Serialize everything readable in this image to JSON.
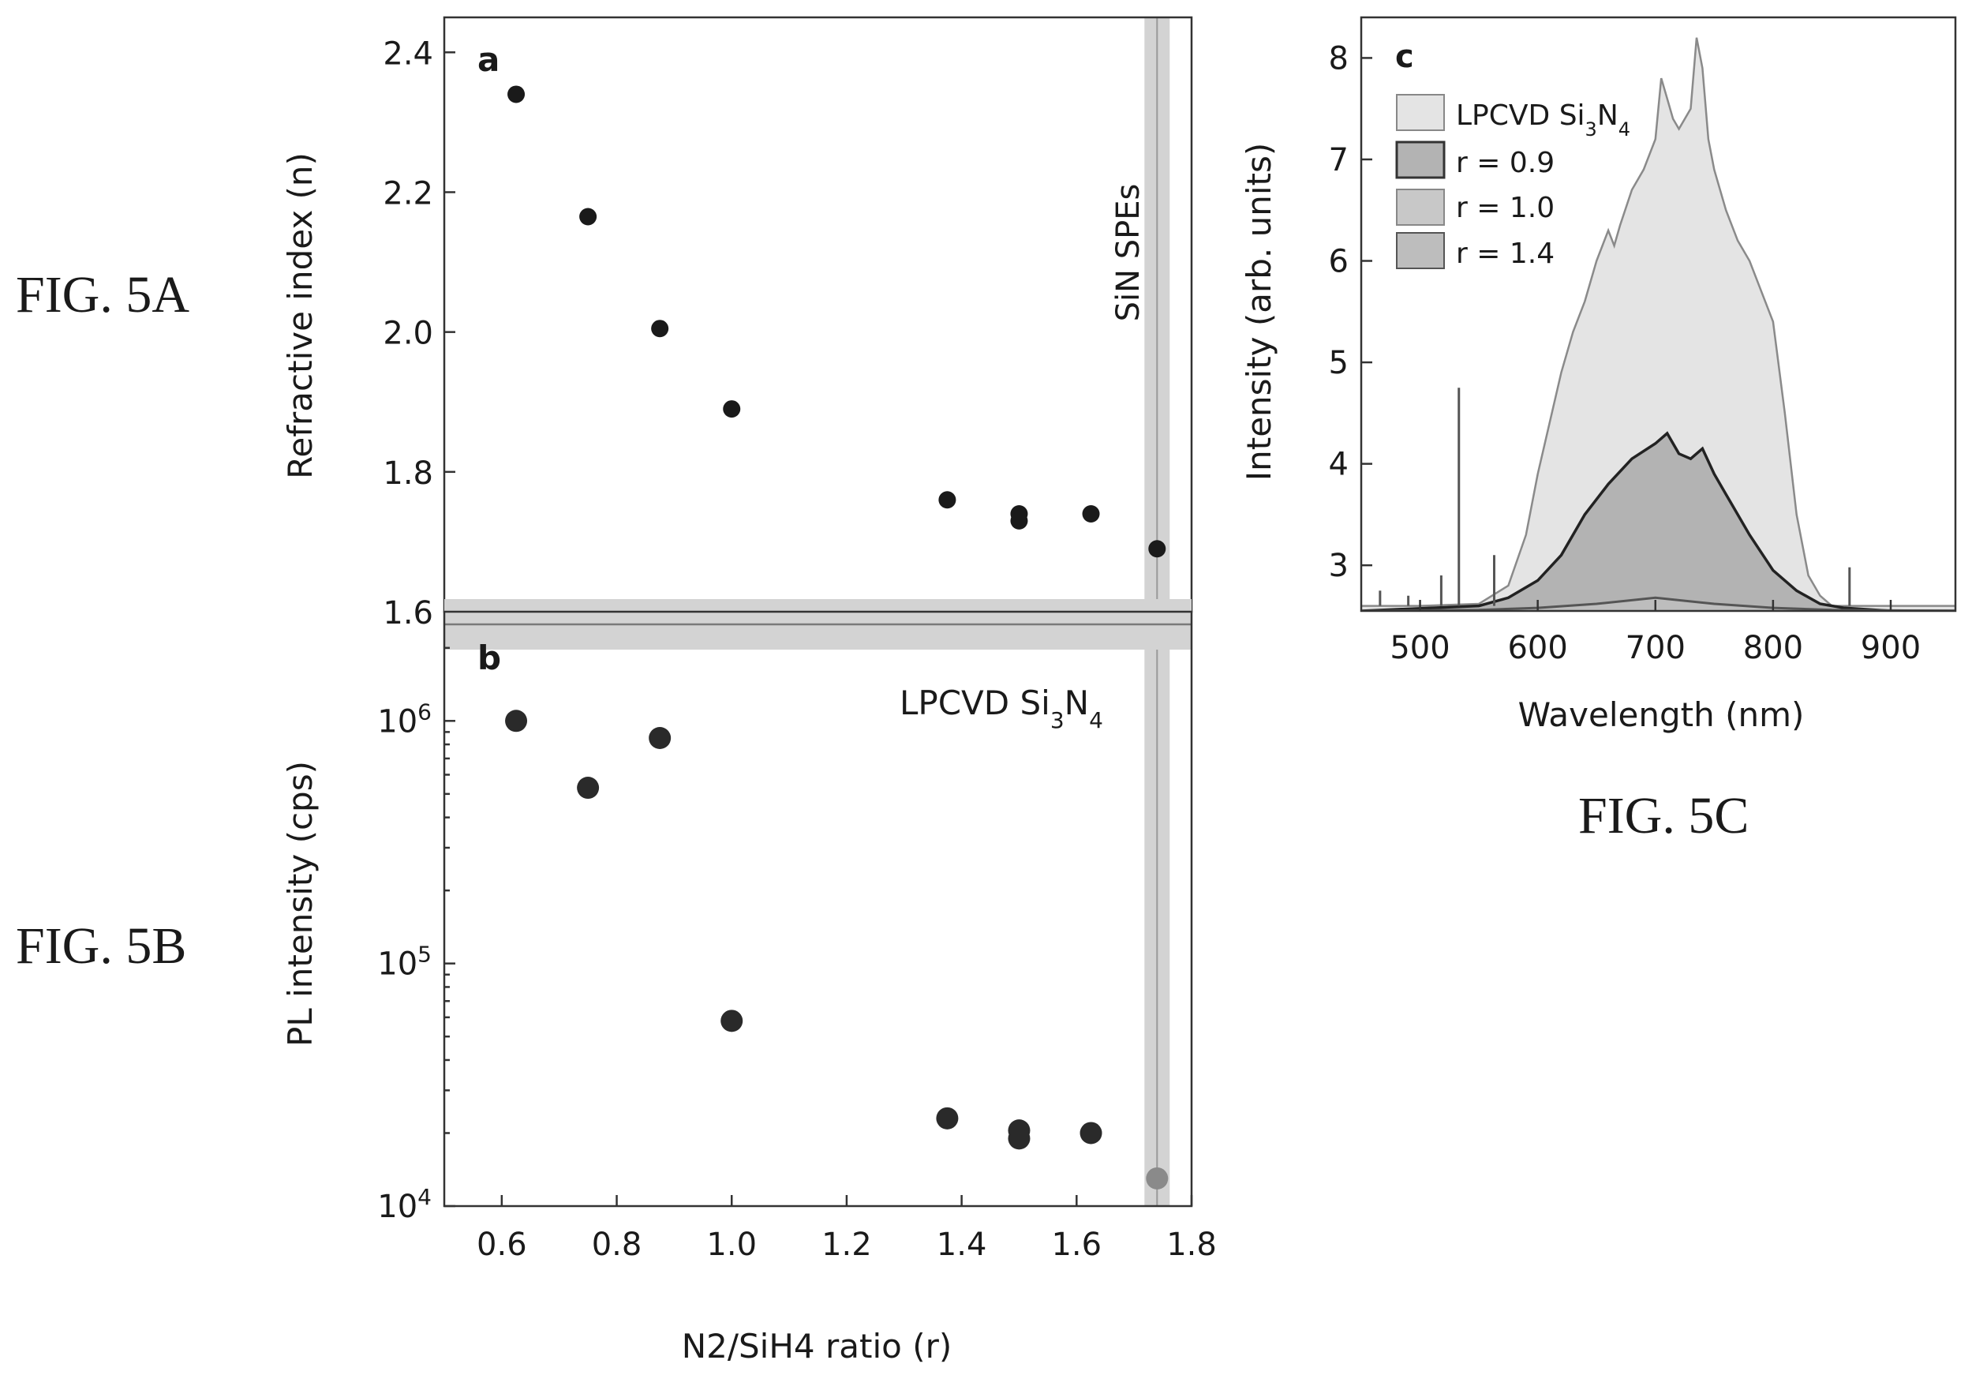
{
  "fig_labels": {
    "a": "FIG. 5A",
    "b": "FIG. 5B",
    "c": "FIG. 5C"
  },
  "colors": {
    "ink": "#1a1a1a",
    "band": "#d3d3d3",
    "band_line": "#9a9a9a",
    "lpcvd_fill": "#e4e4e4",
    "r09_fill": "#b3b3b3",
    "r10_fill": "#c8c8c8",
    "r14_fill": "#bdbdbd",
    "gray_point": "#8a8a8a"
  },
  "chart_data": [
    {
      "id": "a",
      "panel_label": "a",
      "type": "scatter",
      "ylabel": "Refractive index (n)",
      "ylim": [
        1.6,
        2.45
      ],
      "xlim": [
        0.5,
        1.8
      ],
      "yticks": [
        1.6,
        1.8,
        2.0,
        2.2,
        2.4
      ],
      "ytick_labels": [
        "1.6",
        "1.8",
        "2.0",
        "2.2",
        "2.4"
      ],
      "band_label": "SiN SPEs",
      "band_x": 1.74,
      "points": [
        {
          "x": 0.625,
          "y": 2.34
        },
        {
          "x": 0.75,
          "y": 2.165
        },
        {
          "x": 0.875,
          "y": 2.005
        },
        {
          "x": 1.0,
          "y": 1.89
        },
        {
          "x": 1.375,
          "y": 1.76
        },
        {
          "x": 1.5,
          "y": 1.74
        },
        {
          "x": 1.5,
          "y": 1.73
        },
        {
          "x": 1.625,
          "y": 1.74
        },
        {
          "x": 1.74,
          "y": 1.69
        }
      ]
    },
    {
      "id": "b",
      "panel_label": "b",
      "type": "scatter",
      "yscale": "log",
      "ylabel": "PL intensity (cps)",
      "xlabel": "N2/SiH4 ratio (r)",
      "xlim": [
        0.5,
        1.8
      ],
      "ylim_log10": [
        4.0,
        6.45
      ],
      "xticks": [
        0.6,
        0.8,
        1.0,
        1.2,
        1.4,
        1.6,
        1.8
      ],
      "xtick_labels": [
        "0.6",
        "0.8",
        "1.0",
        "1.2",
        "1.4",
        "1.6",
        "1.8"
      ],
      "yticks": [
        {
          "base": "10",
          "exp": "4",
          "value": 10000
        },
        {
          "base": "10",
          "exp": "5",
          "value": 100000
        },
        {
          "base": "10",
          "exp": "6",
          "value": 1000000
        }
      ],
      "reference_label": {
        "prefix": "LPCVD Si",
        "sub1": "3",
        "mid": "N",
        "sub2": "4"
      },
      "reference_value": 2500000,
      "band_x": 1.74,
      "points": [
        {
          "x": 0.625,
          "y": 1000000,
          "shade": "dark"
        },
        {
          "x": 0.75,
          "y": 530000,
          "shade": "dark"
        },
        {
          "x": 0.875,
          "y": 850000,
          "shade": "dark"
        },
        {
          "x": 1.0,
          "y": 58000,
          "shade": "dark"
        },
        {
          "x": 1.375,
          "y": 23000,
          "shade": "dark"
        },
        {
          "x": 1.5,
          "y": 20500,
          "shade": "dark"
        },
        {
          "x": 1.5,
          "y": 19000,
          "shade": "dark"
        },
        {
          "x": 1.625,
          "y": 20000,
          "shade": "dark"
        },
        {
          "x": 1.74,
          "y": 13000,
          "shade": "gray"
        }
      ]
    },
    {
      "id": "c",
      "panel_label": "c",
      "type": "area",
      "xlabel": "Wavelength (nm)",
      "ylabel": "Intensity (arb. units)",
      "xlim": [
        450,
        955
      ],
      "ylim": [
        2.55,
        8.4
      ],
      "xticks": [
        500,
        600,
        700,
        800,
        900
      ],
      "xtick_labels": [
        "500",
        "600",
        "700",
        "800",
        "900"
      ],
      "yticks": [
        3,
        4,
        5,
        6,
        7,
        8
      ],
      "ytick_labels": [
        "3",
        "4",
        "5",
        "6",
        "7",
        "8"
      ],
      "legend": [
        {
          "label_main": "LPCVD Si",
          "sub1": "3",
          "mid": "N",
          "sub2": "4",
          "series": "lpcvd"
        },
        {
          "label": "r = 0.9",
          "series": "r09"
        },
        {
          "label": "r = 1.0",
          "series": "r10"
        },
        {
          "label": "r = 1.4",
          "series": "r14"
        }
      ],
      "series": [
        {
          "key": "lpcvd",
          "x": [
            450,
            500,
            550,
            575,
            590,
            600,
            610,
            620,
            630,
            640,
            650,
            660,
            665,
            670,
            680,
            690,
            700,
            705,
            710,
            715,
            720,
            730,
            735,
            740,
            745,
            750,
            760,
            770,
            780,
            790,
            800,
            810,
            820,
            830,
            840,
            850,
            870,
            900,
            955
          ],
          "y": [
            2.6,
            2.6,
            2.62,
            2.8,
            3.3,
            3.9,
            4.4,
            4.9,
            5.3,
            5.6,
            6.0,
            6.3,
            6.15,
            6.35,
            6.7,
            6.9,
            7.2,
            7.8,
            7.6,
            7.4,
            7.3,
            7.5,
            8.2,
            7.9,
            7.2,
            6.9,
            6.5,
            6.2,
            6.0,
            5.7,
            5.4,
            4.5,
            3.5,
            2.9,
            2.7,
            2.6,
            2.6,
            2.6,
            2.6
          ]
        },
        {
          "key": "r09",
          "x": [
            450,
            550,
            575,
            600,
            620,
            640,
            660,
            680,
            700,
            710,
            720,
            730,
            740,
            750,
            760,
            780,
            800,
            820,
            840,
            860,
            900,
            955
          ],
          "y": [
            2.55,
            2.6,
            2.68,
            2.85,
            3.1,
            3.5,
            3.8,
            4.05,
            4.2,
            4.3,
            4.1,
            4.05,
            4.15,
            3.9,
            3.7,
            3.3,
            2.95,
            2.75,
            2.62,
            2.58,
            2.55,
            2.55
          ]
        },
        {
          "key": "r14",
          "x": [
            450,
            550,
            600,
            650,
            700,
            750,
            800,
            850,
            955
          ],
          "y": [
            2.55,
            2.56,
            2.58,
            2.62,
            2.68,
            2.62,
            2.58,
            2.56,
            2.55
          ]
        }
      ],
      "spikes": [
        {
          "x": 466,
          "y": 2.75
        },
        {
          "x": 490,
          "y": 2.7
        },
        {
          "x": 518,
          "y": 2.9
        },
        {
          "x": 533,
          "y": 4.75
        },
        {
          "x": 563,
          "y": 3.1
        },
        {
          "x": 865,
          "y": 2.98
        }
      ]
    }
  ]
}
